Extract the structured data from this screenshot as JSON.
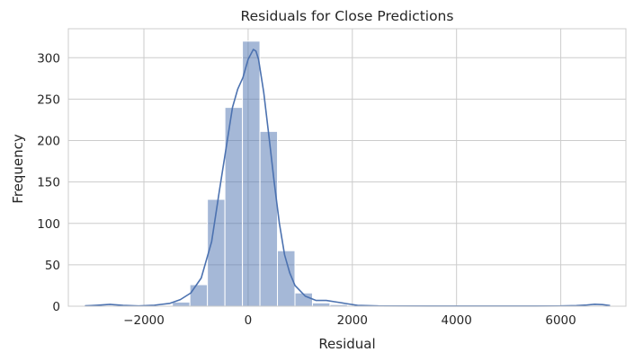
{
  "chart_data": {
    "type": "bar",
    "title": "Residuals for Close Predictions",
    "xlabel": "Residual",
    "ylabel": "Frequency",
    "xlim": [
      -3450,
      7250
    ],
    "ylim": [
      0,
      335
    ],
    "grid": true,
    "x_ticks": [
      -2000,
      0,
      2000,
      4000,
      6000
    ],
    "x_tick_labels": [
      "−2000",
      "0",
      "2000",
      "4000",
      "6000"
    ],
    "y_ticks": [
      0,
      50,
      100,
      150,
      200,
      250,
      300
    ],
    "bin_edges": [
      -3133,
      -2797,
      -2461,
      -2125,
      -1789,
      -1453,
      -1117,
      -781,
      -445,
      -109,
      227,
      563,
      899,
      1235,
      1571,
      1907,
      2243,
      2579,
      2915,
      3251,
      3587,
      3923,
      4259,
      4595,
      4931,
      5267,
      5603,
      5939,
      6275,
      6611,
      6947
    ],
    "counts": [
      2,
      1,
      1,
      1,
      1,
      5,
      26,
      129,
      240,
      320,
      211,
      67,
      16,
      4,
      2,
      0,
      0,
      0,
      0,
      0,
      0,
      0,
      0,
      0,
      0,
      0,
      0,
      0,
      0,
      1
    ],
    "bar_color": "#4c72b0",
    "bar_opacity": 0.5,
    "kde": {
      "color": "#4c72b0",
      "x": [
        -3133,
        -2900,
        -2650,
        -2400,
        -2100,
        -1800,
        -1500,
        -1300,
        -1100,
        -900,
        -700,
        -550,
        -400,
        -300,
        -200,
        -100,
        0,
        100,
        150,
        200,
        300,
        400,
        500,
        600,
        700,
        800,
        900,
        1100,
        1300,
        1500,
        1700,
        1900,
        2100,
        2500,
        3500,
        4500,
        5500,
        6000,
        6300,
        6500,
        6650,
        6800,
        6947
      ],
      "y": [
        0.3,
        1.2,
        2.2,
        1.0,
        0.3,
        1.2,
        3.5,
        8,
        16,
        34,
        78,
        140,
        200,
        240,
        262,
        276,
        298,
        310,
        308,
        298,
        258,
        205,
        150,
        100,
        62,
        40,
        25,
        12,
        7,
        7,
        5,
        3,
        1,
        0.3,
        0.2,
        0.2,
        0.2,
        0.3,
        0.8,
        1.5,
        2.4,
        2.0,
        0.8
      ]
    }
  }
}
